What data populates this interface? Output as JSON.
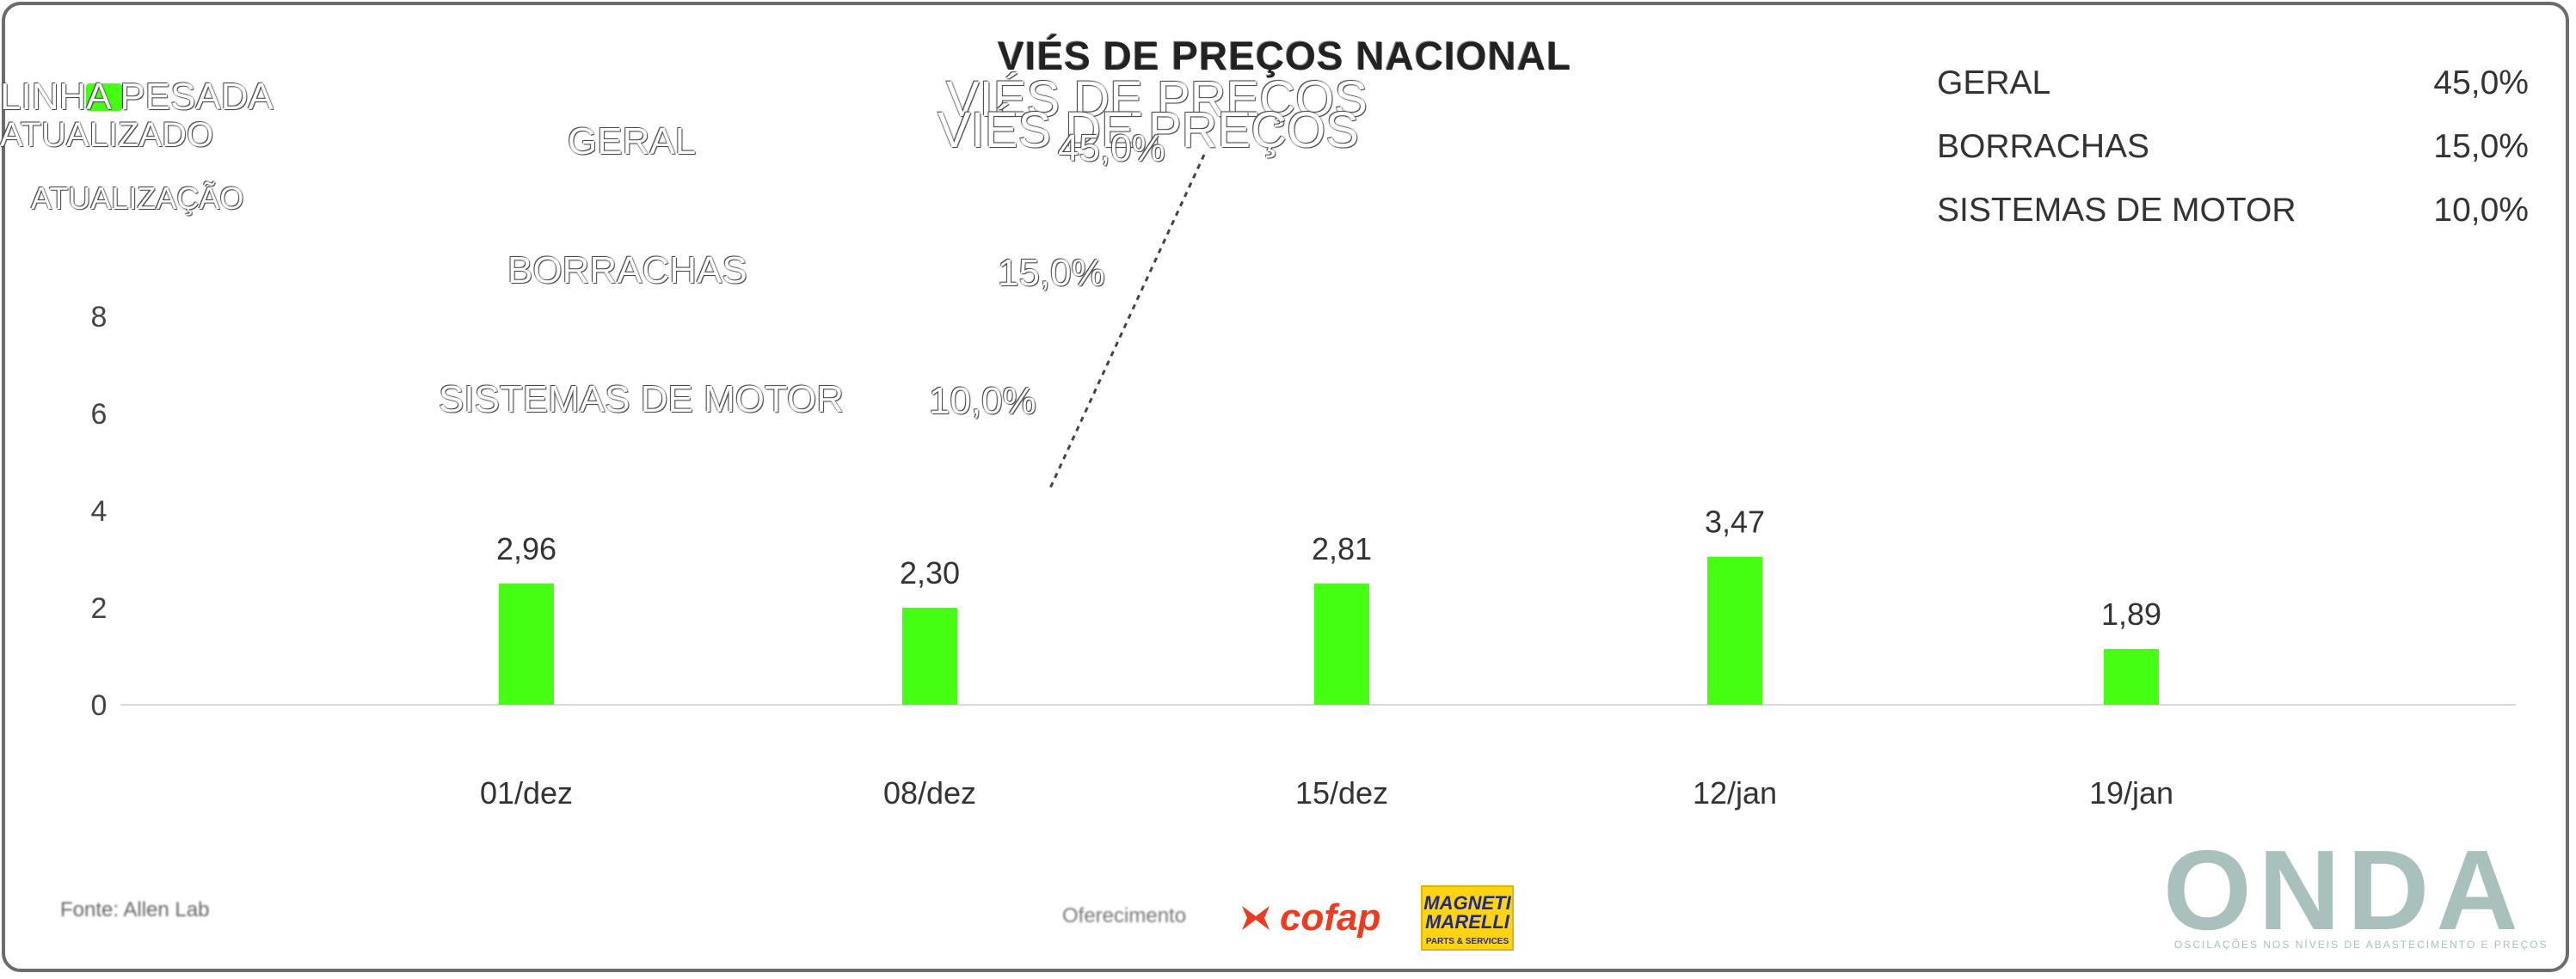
{
  "header": {
    "title": "VIÉS DE PREÇOS NACIONAL",
    "brand_line1": "LINHA PESADA",
    "brand_line2": "ATUALIZADO",
    "updated_label": "ATUALIZAÇÃO"
  },
  "ghost": {
    "title_line1": "VIÉS DE PREÇOS",
    "title_line2": "VIÉS DE PREÇOS",
    "rows": [
      {
        "label": "GERAL",
        "value": "45,0%"
      },
      {
        "label": "BORRACHAS",
        "value": "15,0%"
      },
      {
        "label": "SISTEMAS DE MOTOR",
        "value": "10,0%"
      }
    ]
  },
  "legend": {
    "rows": [
      {
        "label": "GERAL",
        "value": "45,0%"
      },
      {
        "label": "BORRACHAS",
        "value": "15,0%"
      },
      {
        "label": "SISTEMAS DE MOTOR",
        "value": "10,0%"
      }
    ]
  },
  "chart_data": {
    "type": "bar",
    "categories": [
      "01/dez",
      "08/dez",
      "15/dez",
      "12/jan",
      "19/jan"
    ],
    "values": [
      2.96,
      2.3,
      2.81,
      3.47,
      1.89
    ],
    "value_labels": [
      "2,96",
      "2,30",
      "2,81",
      "3,47",
      "1,89"
    ],
    "bar_heights_in_units": [
      2.5,
      2.0,
      2.5,
      3.05,
      1.15
    ],
    "y_ticks": [
      "0",
      "2",
      "4",
      "6",
      "8"
    ],
    "ylim": [
      0,
      8
    ],
    "bar_color": "#44ff11",
    "grid": false,
    "title": "",
    "xlabel": "",
    "ylabel": ""
  },
  "footer": {
    "source": "Fonte: Allen Lab",
    "sponsor_label": "Oferecimento",
    "cofap": "cofap",
    "magneti_line1": "MAGNETI",
    "magneti_line2": "MARELLI",
    "magneti_line3": "PARTS & SERVICES",
    "onda": "ONDA",
    "onda_tag": "OSCILAÇÕES NOS NÍVEIS DE ABASTECIMENTO E PREÇOS"
  },
  "colors": {
    "accent": "#44ff11",
    "cofap": "#ee3b1f",
    "magneti_bg": "#ffd414",
    "onda": "#a9c1bc"
  }
}
